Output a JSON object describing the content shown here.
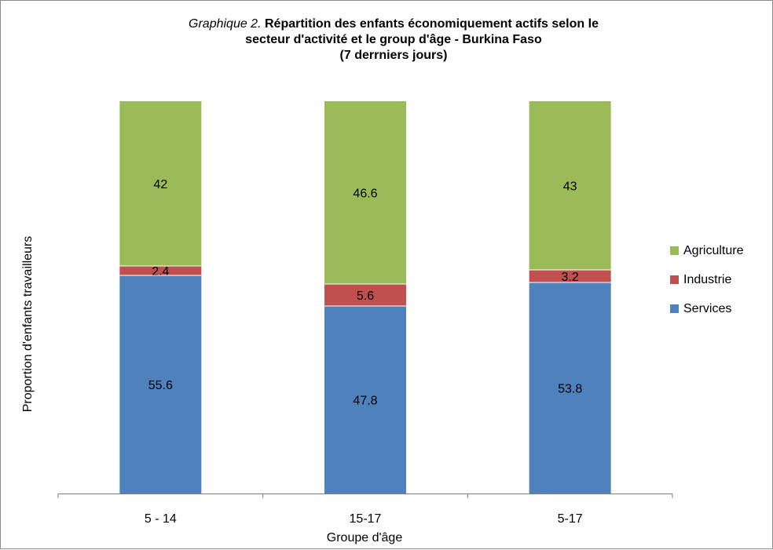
{
  "title": {
    "prefix": "Graphique 2.",
    "line1": "Répartition des enfants économiquement actifs selon le",
    "line2": "secteur d'activité et le group d'âge - Burkina Faso",
    "line3": "(7 derrniers jours)"
  },
  "chart_data": {
    "type": "bar",
    "stacked": true,
    "title": "Graphique 2. Répartition des enfants économiquement actifs selon le secteur d'activité et le group d'âge - Burkina Faso (7 derrniers jours)",
    "xlabel": "Groupe d'âge",
    "ylabel": "Proportion d'enfants travailleurs",
    "categories": [
      "5 - 14",
      "15-17",
      "5-17"
    ],
    "ylim": [
      0,
      100
    ],
    "grid": false,
    "legend_position": "right",
    "series": [
      {
        "name": "Services",
        "values": [
          55.6,
          47.8,
          53.8
        ],
        "labels": [
          "55.6",
          "47.8",
          "53.8"
        ],
        "color": "#4f81bd"
      },
      {
        "name": "Industrie",
        "values": [
          2.4,
          5.6,
          3.2
        ],
        "labels": [
          "2.4",
          "5.6",
          "3.2"
        ],
        "color": "#c0504d"
      },
      {
        "name": "Agriculture",
        "values": [
          42,
          46.6,
          43
        ],
        "labels": [
          "42",
          "46.6",
          "43"
        ],
        "color": "#9bbb59"
      }
    ],
    "legend_order": [
      "Agriculture",
      "Industrie",
      "Services"
    ]
  },
  "colors": {
    "axis": "#7f7f7f",
    "border": "#8c8c8c",
    "segment_separator": "#ffffff"
  }
}
